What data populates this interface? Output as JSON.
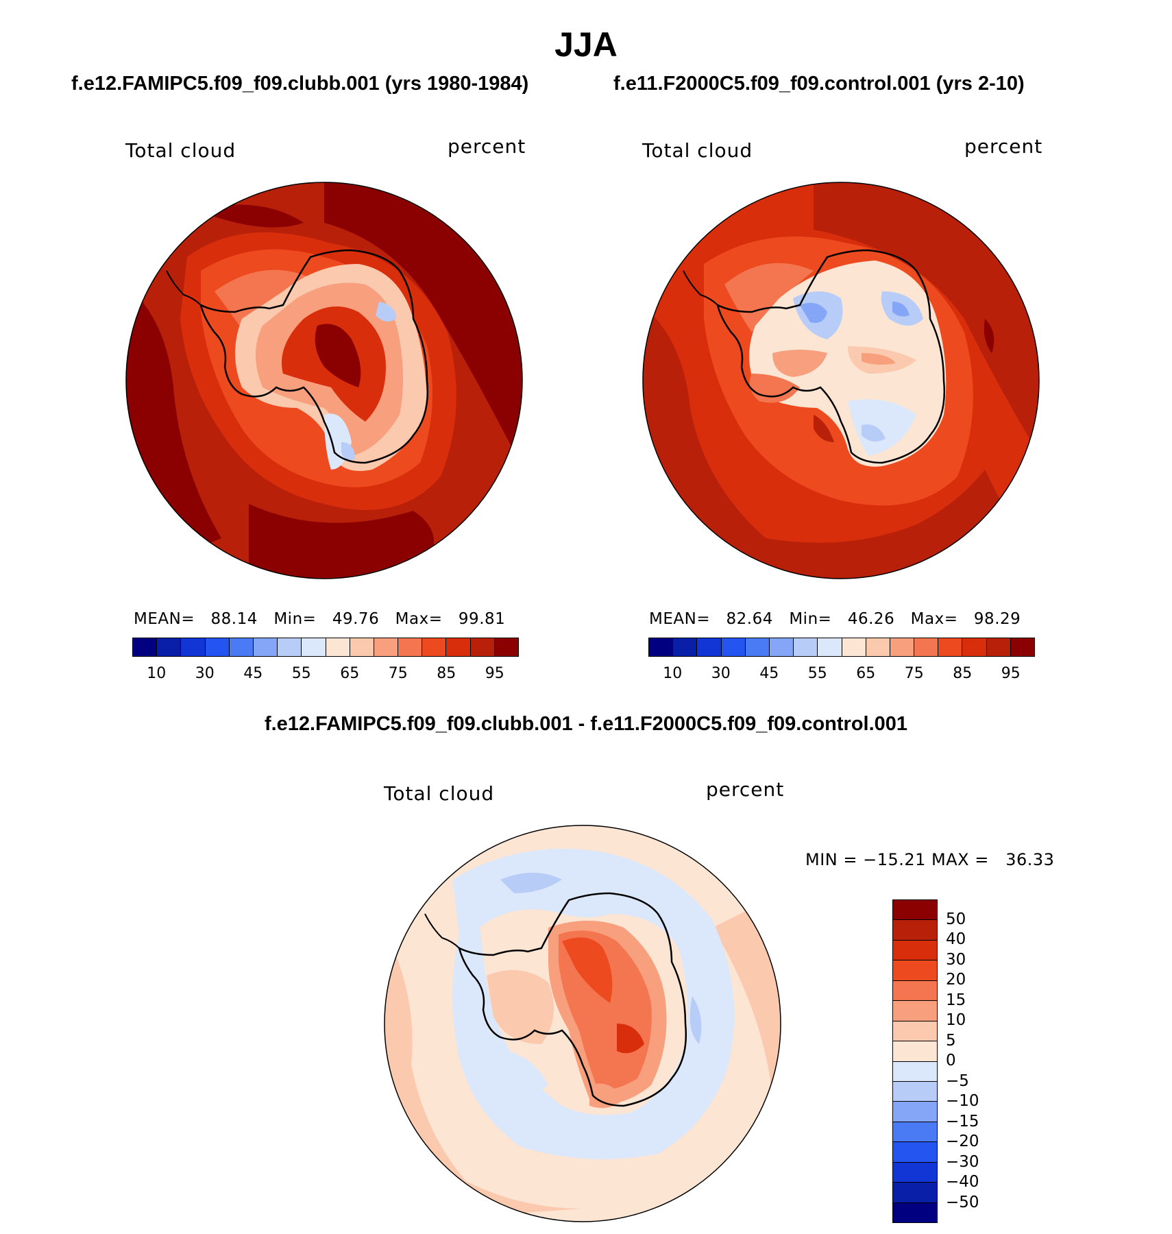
{
  "title": "JJA",
  "panels": [
    {
      "case": "f.e12.FAMIPC5.f09_f09.clubb.001 (yrs 1980-1984)",
      "variable": "Total cloud",
      "units": "percent",
      "mean_label": "MEAN=",
      "mean": "88.14",
      "min_label": "Min=",
      "min": "49.76",
      "max_label": "Max=",
      "max": "99.81",
      "colorbar_ticks": [
        "10",
        "30",
        "45",
        "55",
        "65",
        "75",
        "85",
        "95"
      ]
    },
    {
      "case": "f.e11.F2000C5.f09_f09.control.001 (yrs 2-10)",
      "variable": "Total cloud",
      "units": "percent",
      "mean_label": "MEAN=",
      "mean": "82.64",
      "min_label": "Min=",
      "min": "46.26",
      "max_label": "Max=",
      "max": "98.29",
      "colorbar_ticks": [
        "10",
        "30",
        "45",
        "55",
        "65",
        "75",
        "85",
        "95"
      ]
    }
  ],
  "difference": {
    "title": "f.e12.FAMIPC5.f09_f09.clubb.001 - f.e11.F2000C5.f09_f09.control.001",
    "variable": "Total cloud",
    "units": "percent",
    "minmax_text": "MIN = −15.21 MAX =   36.33",
    "colorbar_ticks": [
      "50",
      "40",
      "30",
      "20",
      "15",
      "10",
      "5",
      "0",
      "−5",
      "−10",
      "−15",
      "−20",
      "−30",
      "−40",
      "−50"
    ]
  },
  "colors": {
    "abs_scale": [
      "#000080",
      "#0a1fa8",
      "#1236d6",
      "#2555f0",
      "#4a7bf5",
      "#85a6f7",
      "#b7cdf8",
      "#dbe7fa",
      "#fde5d4",
      "#fbc9ae",
      "#f89f7d",
      "#f47650",
      "#ee4a1f",
      "#d92e0c",
      "#b8200a",
      "#8b0000"
    ],
    "diff_scale": [
      "#8b0000",
      "#b8200a",
      "#d92e0c",
      "#ee4a1f",
      "#f47650",
      "#f89f7d",
      "#fbc9ae",
      "#fde5d4",
      "#dbe7fa",
      "#b7cdf8",
      "#85a6f7",
      "#4a7bf5",
      "#2555f0",
      "#1236d6",
      "#0a1fa8",
      "#000080"
    ]
  }
}
